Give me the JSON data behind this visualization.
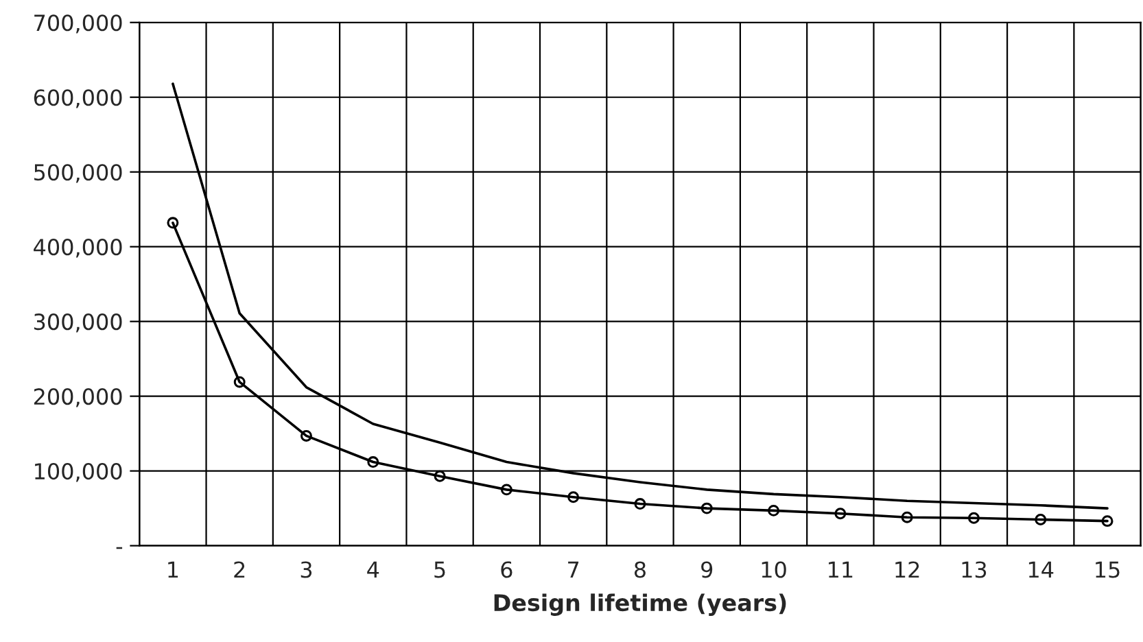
{
  "chart_data": {
    "type": "line",
    "xlabel": "Design lifetime (years)",
    "categories": [
      "1",
      "2",
      "3",
      "4",
      "5",
      "6",
      "7",
      "8",
      "9",
      "10",
      "11",
      "12",
      "13",
      "14",
      "15"
    ],
    "series": [
      {
        "color": "#000000",
        "marker": "none",
        "values": [
          618000,
          311000,
          212000,
          163000,
          138000,
          112000,
          97000,
          85000,
          75000,
          69000,
          65000,
          60000,
          57000,
          54000,
          50000
        ]
      },
      {
        "color": "#000000",
        "marker": "circle",
        "values": [
          432000,
          219000,
          147000,
          112000,
          93000,
          75000,
          65000,
          56000,
          50000,
          47000,
          43000,
          38000,
          37000,
          35000,
          33000
        ]
      }
    ],
    "ylim": [
      0,
      700000
    ],
    "yticks": [
      {
        "value": 0,
        "label": "-"
      },
      {
        "value": 100000,
        "label": "100,000"
      },
      {
        "value": 200000,
        "label": "200,000"
      },
      {
        "value": 300000,
        "label": "300,000"
      },
      {
        "value": 400000,
        "label": "400,000"
      },
      {
        "value": 500000,
        "label": "500,000"
      },
      {
        "value": 600000,
        "label": "600,000"
      },
      {
        "value": 700000,
        "label": "700,000"
      }
    ],
    "grid": true,
    "legend": false
  }
}
